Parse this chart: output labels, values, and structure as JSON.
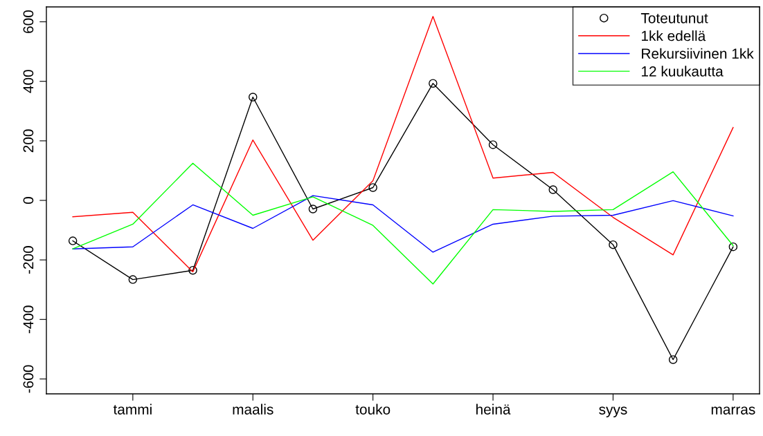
{
  "chart_data": {
    "type": "line",
    "categories": [
      null,
      "tammi",
      null,
      "maalis",
      null,
      "touko",
      null,
      "heinä",
      null,
      "syys",
      null,
      "marras"
    ],
    "series": [
      {
        "name": "Toteutunut",
        "color": "#000000",
        "marker": "circle",
        "values": [
          -136,
          -266,
          -235,
          347,
          -29,
          43,
          393,
          187,
          36,
          -149,
          -535,
          -156
        ]
      },
      {
        "name": "1kk edellä",
        "color": "#ff0000",
        "marker": "none",
        "values": [
          -55,
          -40,
          -240,
          203,
          -134,
          66,
          618,
          75,
          94,
          -57,
          -183,
          245
        ]
      },
      {
        "name": "Rekursiivinen 1kk",
        "color": "#0000ff",
        "marker": "none",
        "values": [
          -163,
          -156,
          -15,
          -94,
          16,
          -15,
          -174,
          -80,
          -53,
          -50,
          -1,
          -52
        ]
      },
      {
        "name": "12 kuukautta",
        "color": "#00ff00",
        "marker": "none",
        "values": [
          -163,
          -80,
          125,
          -50,
          12,
          -84,
          -281,
          -31,
          -37,
          -31,
          96,
          -152
        ]
      }
    ],
    "ylim": [
      -650,
      650
    ],
    "yticks": [
      -600,
      -400,
      -200,
      0,
      200,
      400,
      600
    ],
    "grid": false,
    "legend": "top right",
    "line_style": "solid"
  }
}
